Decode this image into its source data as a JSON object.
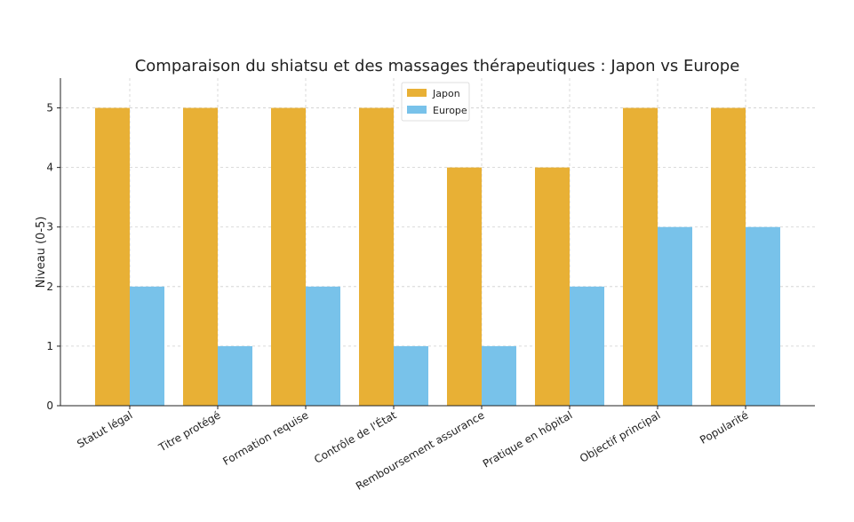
{
  "chart_data": {
    "type": "bar",
    "title": "Comparaison du shiatsu et des massages thérapeutiques : Japon vs Europe",
    "xlabel": "",
    "ylabel": "Niveau (0-5)",
    "ylim": [
      0,
      5.5
    ],
    "yticks": [
      "0",
      "1",
      "2",
      "3",
      "4",
      "5"
    ],
    "grid": true,
    "legend_position": "top-center",
    "categories": [
      "Statut légal",
      "Titre protégé",
      "Formation requise",
      "Contrôle de l'État",
      "Remboursement assurance",
      "Pratique en hôpital",
      "Objectif principal",
      "Popularité"
    ],
    "series": [
      {
        "name": "Japon",
        "color": "#E8B035",
        "values": [
          5,
          5,
          5,
          5,
          4,
          4,
          5,
          5
        ]
      },
      {
        "name": "Europe",
        "color": "#78C2EA",
        "values": [
          2,
          1,
          2,
          1,
          1,
          2,
          3,
          3
        ]
      }
    ]
  }
}
